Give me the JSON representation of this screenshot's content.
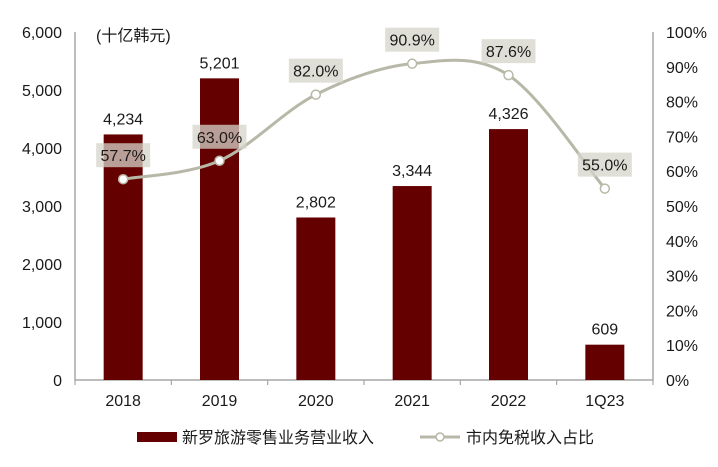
{
  "chart_data": {
    "type": "bar+line",
    "unit_label": "(十亿韩元)",
    "categories": [
      "2018",
      "2019",
      "2020",
      "2021",
      "2022",
      "1Q23"
    ],
    "series": [
      {
        "name": "新罗旅游零售业务营业收入",
        "type": "bar",
        "axis": "left",
        "color": "#650000",
        "values": [
          4234,
          5201,
          2802,
          3344,
          4326,
          609
        ],
        "labels": [
          "4,234",
          "5,201",
          "2,802",
          "3,344",
          "4,326",
          "609"
        ]
      },
      {
        "name": "市内免税收入占比",
        "type": "line",
        "axis": "right",
        "color": "#b8b8a8",
        "values": [
          57.7,
          63.0,
          82.0,
          90.9,
          87.6,
          55.0
        ],
        "labels": [
          "57.7%",
          "63.0%",
          "82.0%",
          "90.9%",
          "87.6%",
          "55.0%"
        ]
      }
    ],
    "left_axis": {
      "ylim": [
        0,
        6000
      ],
      "ticks": [
        "0",
        "1,000",
        "2,000",
        "3,000",
        "4,000",
        "5,000",
        "6,000"
      ]
    },
    "right_axis": {
      "ylim": [
        0,
        100
      ],
      "ticks": [
        "0%",
        "10%",
        "20%",
        "30%",
        "40%",
        "50%",
        "60%",
        "70%",
        "80%",
        "90%",
        "100%"
      ]
    },
    "grid": false,
    "legend_position": "bottom",
    "xlabel": "",
    "ylabel": ""
  }
}
